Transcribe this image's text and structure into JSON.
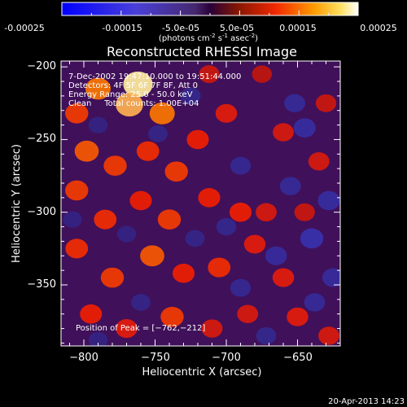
{
  "colorbar": {
    "ticks": [
      "-0.00025",
      "-0.00015",
      "-5.0e-05",
      "5.0e-05",
      "0.00015",
      "0.00025"
    ],
    "unit_main": "(photons cm",
    "unit_sup1": "-2",
    "unit_mid": " s",
    "unit_sup2": "-1",
    "unit_end": " asec",
    "unit_sup3": "-2",
    "unit_close": ")",
    "range": [
      -0.00025,
      0.00025
    ]
  },
  "chart_data": {
    "type": "heatmap",
    "title": "Reconstructed RHESSI Image",
    "xlabel": "Heliocentric X (arcsec)",
    "ylabel": "Heliocentric Y (arcsec)",
    "xlim": [
      -816,
      -620
    ],
    "ylim": [
      -392,
      -196
    ],
    "x_ticks": [
      -800,
      -750,
      -700,
      -650
    ],
    "x_tick_labels": [
      "−800",
      "−750",
      "−700",
      "−650"
    ],
    "y_ticks": [
      -200,
      -250,
      -300,
      -350
    ],
    "y_tick_labels": [
      "−200",
      "−250",
      "−300",
      "−350"
    ],
    "peak": [
      -762,
      -212
    ],
    "annotations": [
      "7-Dec-2002 19:47:10.000 to 19:51:44.000",
      "Detectors: 4F 5F 6F 7F 8F, Att 0",
      "Energy Range: 25.0 - 50.0 keV",
      "Clean     Total counts: 1.00E+04"
    ],
    "peak_label": "Position of Peak = [−762,−212]",
    "colormap": "red-temperature (blue negative, white positive)",
    "blobs": [
      {
        "x": -762,
        "y": -212,
        "value": 0.00024
      },
      {
        "x": -768,
        "y": -226,
        "value": 0.0002
      },
      {
        "x": -745,
        "y": -232,
        "value": 0.00016
      },
      {
        "x": -790,
        "y": -215,
        "value": 0.00016
      },
      {
        "x": -805,
        "y": -232,
        "value": 0.00012
      },
      {
        "x": -798,
        "y": -258,
        "value": 0.00014
      },
      {
        "x": -778,
        "y": -268,
        "value": 0.00012
      },
      {
        "x": -755,
        "y": -258,
        "value": 0.00011
      },
      {
        "x": -735,
        "y": -272,
        "value": 0.00012
      },
      {
        "x": -720,
        "y": -250,
        "value": 0.0001
      },
      {
        "x": -805,
        "y": -285,
        "value": 0.00012
      },
      {
        "x": -785,
        "y": -305,
        "value": 0.00011
      },
      {
        "x": -760,
        "y": -292,
        "value": 0.0001
      },
      {
        "x": -740,
        "y": -305,
        "value": 0.00012
      },
      {
        "x": -712,
        "y": -290,
        "value": 0.0001
      },
      {
        "x": -690,
        "y": -300,
        "value": 0.0001
      },
      {
        "x": -805,
        "y": -325,
        "value": 0.00011
      },
      {
        "x": -780,
        "y": -345,
        "value": 0.00012
      },
      {
        "x": -752,
        "y": -330,
        "value": 0.00014
      },
      {
        "x": -730,
        "y": -342,
        "value": 0.0001
      },
      {
        "x": -705,
        "y": -338,
        "value": 0.00011
      },
      {
        "x": -680,
        "y": -322,
        "value": 9e-05
      },
      {
        "x": -660,
        "y": -345,
        "value": 9e-05
      },
      {
        "x": -672,
        "y": -300,
        "value": 8e-05
      },
      {
        "x": -700,
        "y": -232,
        "value": 9e-05
      },
      {
        "x": -660,
        "y": -245,
        "value": 8e-05
      },
      {
        "x": -635,
        "y": -265,
        "value": 8e-05
      },
      {
        "x": -645,
        "y": -300,
        "value": 7e-05
      },
      {
        "x": -795,
        "y": -370,
        "value": 0.0001
      },
      {
        "x": -770,
        "y": -380,
        "value": 9e-05
      },
      {
        "x": -738,
        "y": -372,
        "value": 0.00012
      },
      {
        "x": -710,
        "y": -380,
        "value": 8e-05
      },
      {
        "x": -685,
        "y": -370,
        "value": 8e-05
      },
      {
        "x": -650,
        "y": -372,
        "value": 9e-05
      },
      {
        "x": -628,
        "y": -385,
        "value": 8e-05
      },
      {
        "x": -630,
        "y": -225,
        "value": 7e-05
      },
      {
        "x": -675,
        "y": -205,
        "value": 6e-05
      },
      {
        "x": -712,
        "y": -205,
        "value": 7e-05
      },
      {
        "x": -748,
        "y": -246,
        "value": -5e-05
      },
      {
        "x": -725,
        "y": -220,
        "value": -6e-05
      },
      {
        "x": -690,
        "y": -268,
        "value": -7e-05
      },
      {
        "x": -652,
        "y": -225,
        "value": -8e-05
      },
      {
        "x": -645,
        "y": -242,
        "value": -0.0001
      },
      {
        "x": -628,
        "y": -292,
        "value": -0.0001
      },
      {
        "x": -655,
        "y": -282,
        "value": -8e-05
      },
      {
        "x": -665,
        "y": -330,
        "value": -9e-05
      },
      {
        "x": -640,
        "y": -318,
        "value": -0.00012
      },
      {
        "x": -700,
        "y": -310,
        "value": -6e-05
      },
      {
        "x": -722,
        "y": -318,
        "value": -5e-05
      },
      {
        "x": -690,
        "y": -352,
        "value": -7e-05
      },
      {
        "x": -625,
        "y": -345,
        "value": -9e-05
      },
      {
        "x": -638,
        "y": -362,
        "value": -8e-05
      },
      {
        "x": -672,
        "y": -385,
        "value": -6e-05
      },
      {
        "x": -770,
        "y": -315,
        "value": -4e-05
      },
      {
        "x": -790,
        "y": -240,
        "value": -4e-05
      },
      {
        "x": -808,
        "y": -305,
        "value": -4e-05
      },
      {
        "x": -760,
        "y": -362,
        "value": -5e-05
      },
      {
        "x": -790,
        "y": -388,
        "value": -4e-05
      }
    ]
  },
  "footer": {
    "timestamp": "20-Apr-2013 14:23"
  }
}
